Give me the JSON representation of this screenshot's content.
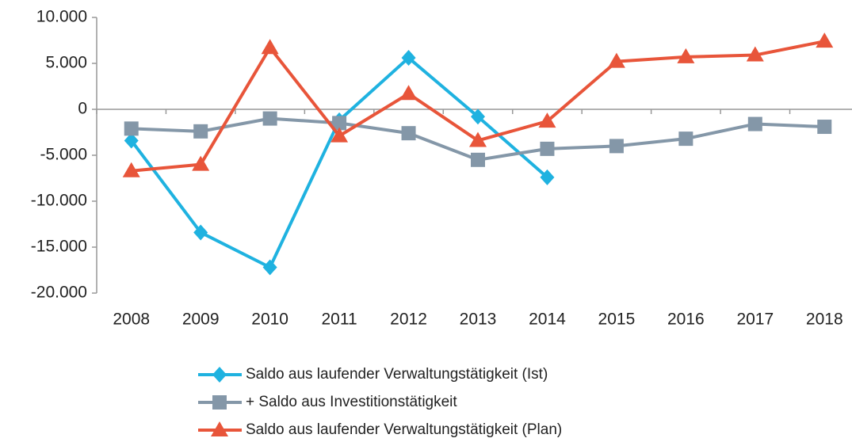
{
  "chart_data": {
    "type": "line",
    "categories": [
      "2008",
      "2009",
      "2010",
      "2011",
      "2012",
      "2013",
      "2014",
      "2015",
      "2016",
      "2017",
      "2018"
    ],
    "series": [
      {
        "name": "Saldo aus laufender Verwaltungstätigkeit (Ist)",
        "color": "#1fb2e0",
        "marker": "diamond",
        "values": [
          -3400,
          -13400,
          -17200,
          -1200,
          5600,
          -800,
          -7400,
          null,
          null,
          null,
          null
        ]
      },
      {
        "name": "+ Saldo aus Investitionstätigkeit",
        "color": "#8497a8",
        "marker": "square",
        "values": [
          -2100,
          -2400,
          -1000,
          -1500,
          -2600,
          -5500,
          -4300,
          -4000,
          -3200,
          -1600,
          -1900
        ]
      },
      {
        "name": "Saldo aus laufender Verwaltungstätigkeit (Plan)",
        "color": "#e8553a",
        "marker": "triangle",
        "values": [
          -6700,
          -6000,
          6700,
          -2900,
          1700,
          -3400,
          -1300,
          5200,
          5700,
          5900,
          7400
        ]
      }
    ],
    "ylim": [
      -20000,
      10000
    ],
    "yticks": [
      {
        "value": -20000,
        "label": "-20.000"
      },
      {
        "value": -15000,
        "label": "-15.000"
      },
      {
        "value": -10000,
        "label": "-10.000"
      },
      {
        "value": -5000,
        "label": "-5.000"
      },
      0,
      {
        "value": 5000,
        "label": "5.000"
      },
      {
        "value": 10000,
        "label": "10.000"
      }
    ],
    "grid": false,
    "legend": "bottom"
  }
}
